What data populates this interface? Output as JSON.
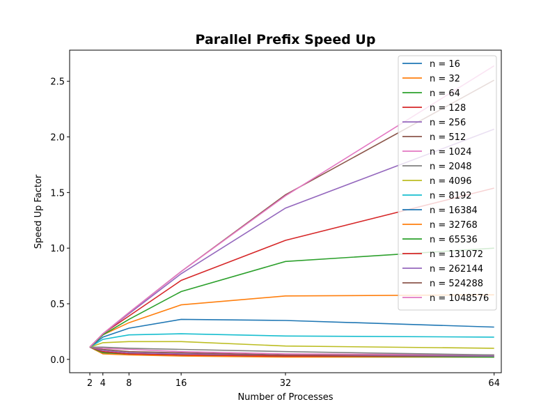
{
  "chart_data": {
    "type": "line",
    "title": "Parallel Prefix Speed Up",
    "xlabel": "Number of Processes",
    "ylabel": "Speed Up Factor",
    "x": [
      2,
      4,
      8,
      16,
      32,
      64
    ],
    "xticks": [
      2,
      4,
      8,
      16,
      32,
      64
    ],
    "xtick_labels": [
      "2",
      "4",
      "8",
      "16",
      "32",
      "64"
    ],
    "xlim": [
      -1.1,
      65.1
    ],
    "yticks": [
      0.0,
      0.5,
      1.0,
      1.5,
      2.0,
      2.5
    ],
    "ytick_labels": [
      "0.0",
      "0.5",
      "1.0",
      "1.5",
      "2.0",
      "2.5"
    ],
    "ylim": [
      -0.12,
      2.78
    ],
    "grid": false,
    "legend_position": "top-right",
    "series": [
      {
        "name": "n = 16",
        "color": "#1f77b4",
        "values": [
          0.11,
          0.06,
          0.05,
          0.04,
          0.03,
          0.02
        ]
      },
      {
        "name": "n = 32",
        "color": "#ff7f0e",
        "values": [
          0.11,
          0.05,
          0.04,
          0.03,
          0.02,
          0.02
        ]
      },
      {
        "name": "n = 64",
        "color": "#2ca02c",
        "values": [
          0.11,
          0.06,
          0.05,
          0.04,
          0.03,
          0.02
        ]
      },
      {
        "name": "n = 128",
        "color": "#d62728",
        "values": [
          0.11,
          0.07,
          0.05,
          0.04,
          0.03,
          0.03
        ]
      },
      {
        "name": "n = 256",
        "color": "#9467bd",
        "values": [
          0.11,
          0.08,
          0.06,
          0.05,
          0.04,
          0.03
        ]
      },
      {
        "name": "n = 512",
        "color": "#8c564b",
        "values": [
          0.11,
          0.09,
          0.07,
          0.06,
          0.04,
          0.04
        ]
      },
      {
        "name": "n = 1024",
        "color": "#e377c2",
        "values": [
          0.11,
          0.1,
          0.09,
          0.07,
          0.05,
          0.04
        ]
      },
      {
        "name": "n = 2048",
        "color": "#7f7f7f",
        "values": [
          0.11,
          0.11,
          0.1,
          0.09,
          0.07,
          0.04
        ]
      },
      {
        "name": "n = 4096",
        "color": "#bcbd22",
        "values": [
          0.11,
          0.15,
          0.16,
          0.16,
          0.12,
          0.1
        ]
      },
      {
        "name": "n = 8192",
        "color": "#17becf",
        "values": [
          0.11,
          0.18,
          0.22,
          0.23,
          0.21,
          0.2
        ]
      },
      {
        "name": "n = 16384",
        "color": "#1f77b4",
        "values": [
          0.11,
          0.2,
          0.28,
          0.36,
          0.35,
          0.29
        ]
      },
      {
        "name": "n = 32768",
        "color": "#ff7f0e",
        "values": [
          0.11,
          0.22,
          0.33,
          0.49,
          0.57,
          0.58
        ]
      },
      {
        "name": "n = 65536",
        "color": "#2ca02c",
        "values": [
          0.11,
          0.22,
          0.36,
          0.61,
          0.88,
          1.0
        ]
      },
      {
        "name": "n = 131072",
        "color": "#d62728",
        "values": [
          0.11,
          0.23,
          0.39,
          0.71,
          1.07,
          1.54
        ]
      },
      {
        "name": "n = 262144",
        "color": "#9467bd",
        "values": [
          0.11,
          0.23,
          0.41,
          0.77,
          1.36,
          2.07
        ]
      },
      {
        "name": "n = 524288",
        "color": "#8c564b",
        "values": [
          0.11,
          0.23,
          0.42,
          0.79,
          1.48,
          2.51
        ]
      },
      {
        "name": "n = 1048576",
        "color": "#e377c2",
        "values": [
          0.11,
          0.23,
          0.42,
          0.79,
          1.47,
          2.64
        ]
      }
    ]
  }
}
